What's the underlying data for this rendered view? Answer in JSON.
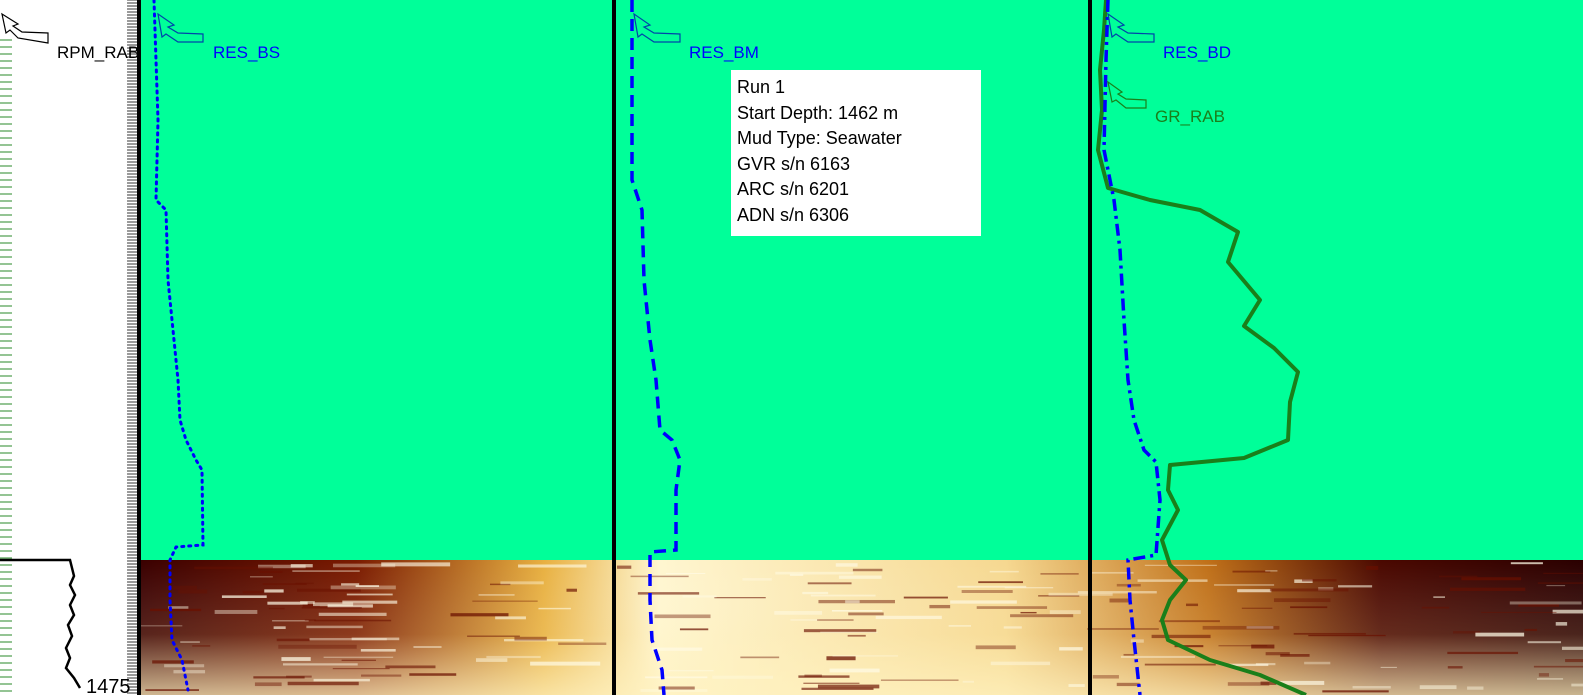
{
  "colors": {
    "background": "#00ff99",
    "track_divider": "#000000",
    "res_curves": "#0000ff",
    "gr_curve": "#1a7f1a",
    "depth_ticks": "#2a8a2a",
    "image_dark": "#3a0000",
    "image_mid": "#b06a10",
    "image_light": "#fff6d0"
  },
  "icons": {
    "curve_pointer": "arrow-pointer-icon"
  },
  "tracks": {
    "depth": {
      "curve_label": "RPM_RAB",
      "depth_tick_label": "1475"
    },
    "track1": {
      "curve_label": "RES_BS"
    },
    "track2": {
      "curve_label": "RES_BM"
    },
    "track3": {
      "curve_label": "RES_BD",
      "curve_label_2": "GR_RAB"
    }
  },
  "run_info": {
    "lines": [
      "Run 1",
      "Start Depth: 1462 m",
      "Mud Type: Seawater",
      "GVR s/n 6163",
      "ARC s/n 6201",
      "ADN s/n 6306"
    ]
  }
}
